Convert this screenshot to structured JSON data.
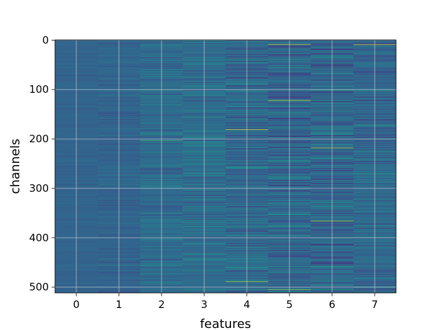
{
  "chart_data": {
    "type": "heatmap",
    "title": "",
    "xlabel": "features",
    "ylabel": "channels",
    "x_ticks": [
      0,
      1,
      2,
      3,
      4,
      5,
      6,
      7
    ],
    "y_ticks": [
      0,
      100,
      200,
      300,
      400,
      500
    ],
    "x_range": [
      -0.5,
      7.5
    ],
    "y_range": [
      -0.5,
      511.5
    ],
    "y_inverted": true,
    "n_channels": 512,
    "n_features": 8,
    "grid": true,
    "colormap": "viridis",
    "value_range": [
      0,
      1
    ],
    "feature_spread": [
      0.04,
      0.08,
      0.13,
      0.16,
      0.19,
      0.22,
      0.22,
      0.16
    ],
    "feature_base": [
      0.32,
      0.32,
      0.35,
      0.36,
      0.34,
      0.33,
      0.33,
      0.34
    ],
    "highlights": [
      {
        "feature": 4,
        "channel": 181,
        "value": 0.95
      },
      {
        "feature": 5,
        "channel": 9,
        "value": 0.92
      },
      {
        "feature": 5,
        "channel": 122,
        "value": 0.92
      },
      {
        "feature": 6,
        "channel": 218,
        "value": 0.9
      },
      {
        "feature": 6,
        "channel": 366,
        "value": 0.88
      },
      {
        "feature": 7,
        "channel": 9,
        "value": 0.95
      },
      {
        "feature": 4,
        "channel": 489,
        "value": 0.9
      },
      {
        "feature": 5,
        "channel": 505,
        "value": 0.85
      },
      {
        "feature": 2,
        "channel": 203,
        "value": 0.7
      }
    ]
  }
}
